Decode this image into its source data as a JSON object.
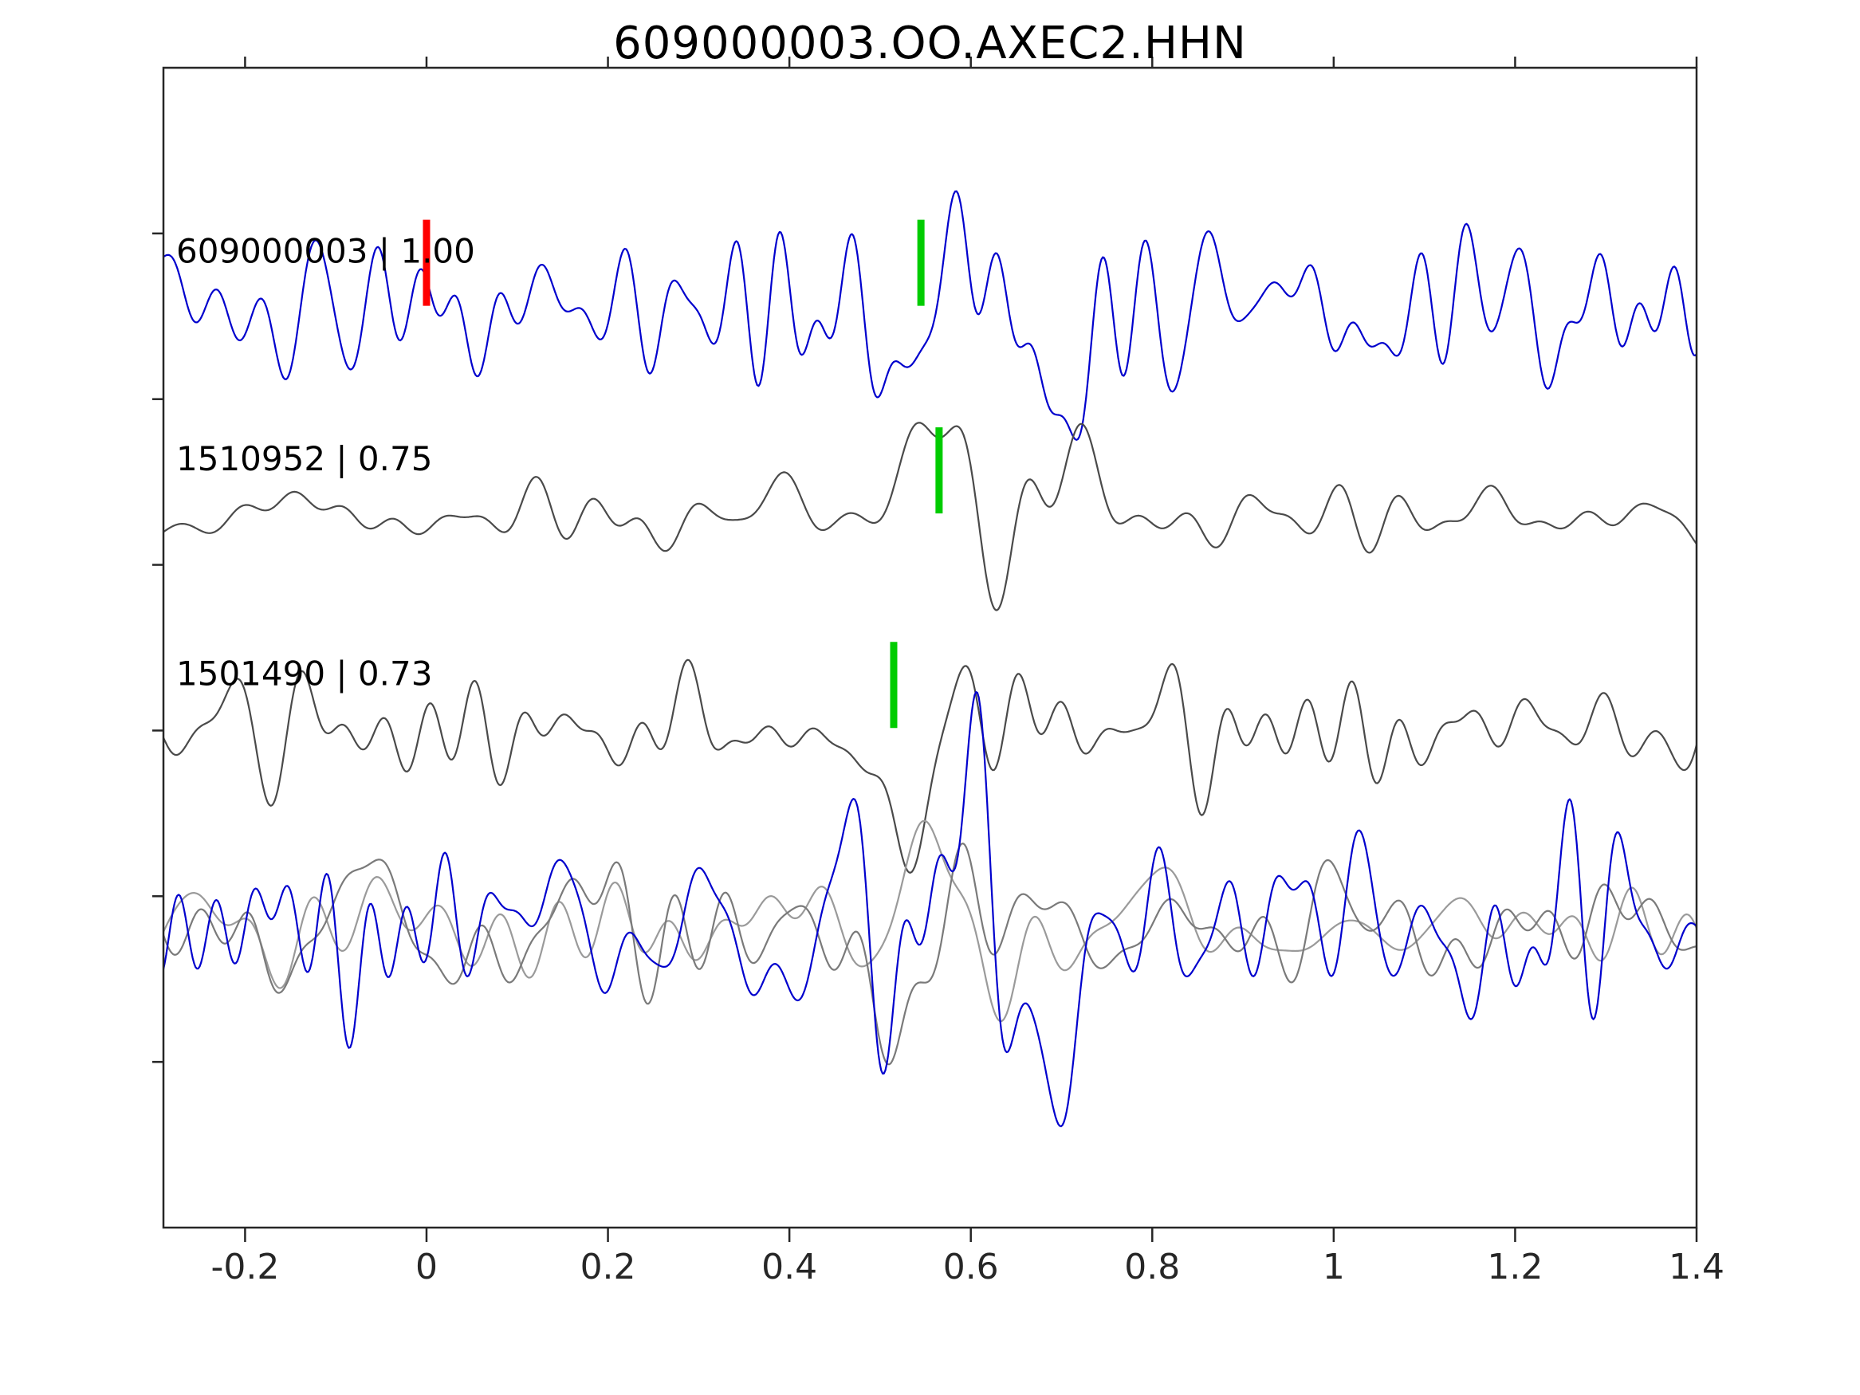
{
  "title": "609000003.OO.AXEC2.HHN",
  "colors": {
    "template_trace": "#0000cd",
    "detection_trace": "#4a4a4a",
    "overlay_gray_1": "#7a7a7a",
    "overlay_gray_2": "#9a9a9a",
    "origin_marker": "#ff0000",
    "pick_marker": "#00cc00",
    "axis": "#262626",
    "background": "#ffffff"
  },
  "chart_data": {
    "type": "line",
    "title": "609000003.OO.AXEC2.HHN",
    "xlabel": "",
    "ylabel": "",
    "xlim": [
      -0.29,
      1.4
    ],
    "x_ticks": [
      -0.2,
      0,
      0.2,
      0.4,
      0.6,
      0.8,
      1,
      1.2,
      1.4
    ],
    "x_tick_labels": [
      "-0.2",
      "0",
      "0.2",
      "0.4",
      "0.6",
      "0.8",
      "1",
      "1.2",
      "1.4"
    ],
    "grid": false,
    "legend": "none",
    "description": "Template-matching seismic waveform comparison: template event 609000003 (blue) against detections 1510952 (cc 0.75) and 1501490 (cc 0.73), with an overlay of all aligned traces in the bottom row. Red bar marks template origin time 0.0 s; green bars mark picks near 0.52-0.57 s.",
    "rows": [
      {
        "label": "609000003 | 1.00",
        "event_id": "609000003",
        "correlation": 1.0,
        "markers": [
          {
            "t": 0.0,
            "color": "#ff0000",
            "kind": "origin"
          },
          {
            "t": 0.545,
            "color": "#00cc00",
            "kind": "pick"
          }
        ],
        "traces": [
          {
            "color": "#0000cd",
            "seed": 11,
            "noise_amp": 0.4,
            "K": 60,
            "fmin": 2,
            "fmax": 26,
            "boost": {
              "amt": 0.45,
              "center": 0.6,
              "width": 0.18
            },
            "wavelets": [
              {
                "t0": 0.52,
                "A": -1.1,
                "sigma": 0.045,
                "f": 6.0,
                "ph": 0
              },
              {
                "t0": 0.63,
                "A": 0.95,
                "sigma": 0.07,
                "f": 5.0,
                "ph": 1.5
              },
              {
                "t0": 0.69,
                "A": -0.85,
                "sigma": 0.045,
                "f": 5.0,
                "ph": 0
              }
            ]
          }
        ]
      },
      {
        "label": "1510952 | 0.75",
        "event_id": "1510952",
        "correlation": 0.75,
        "markers": [
          {
            "t": 0.565,
            "color": "#00cc00",
            "kind": "pick"
          }
        ],
        "traces": [
          {
            "color": "#4a4a4a",
            "seed": 23,
            "noise_amp": 0.13,
            "K": 50,
            "fmin": 2,
            "fmax": 20,
            "boost": {
              "amt": 1.2,
              "center": 0.75,
              "width": 0.3
            },
            "wavelets": [
              {
                "t0": 0.565,
                "A": 1.55,
                "sigma": 0.032,
                "f": 2.0,
                "ph": 0
              },
              {
                "t0": 0.625,
                "A": -0.6,
                "sigma": 0.05,
                "f": 2.5,
                "ph": 0
              },
              {
                "t0": 0.72,
                "A": 0.45,
                "sigma": 0.06,
                "f": 3.0,
                "ph": 0
              }
            ]
          }
        ]
      },
      {
        "label": "1501490 | 0.73",
        "event_id": "1501490",
        "correlation": 0.73,
        "markers": [
          {
            "t": 0.515,
            "color": "#00cc00",
            "kind": "pick"
          }
        ],
        "traces": [
          {
            "color": "#4a4a4a",
            "seed": 37,
            "noise_amp": 0.26,
            "K": 55,
            "fmin": 2,
            "fmax": 22,
            "boost": {
              "amt": 0.25,
              "center": 0.65,
              "width": 0.25
            },
            "wavelets": [
              {
                "t0": 0.525,
                "A": -1.35,
                "sigma": 0.035,
                "f": 2.5,
                "ph": 0
              },
              {
                "t0": 0.58,
                "A": 0.65,
                "sigma": 0.04,
                "f": 3.0,
                "ph": 0
              }
            ]
          }
        ]
      },
      {
        "label": "",
        "event_id": "overlay",
        "correlation": null,
        "markers": [],
        "traces": [
          {
            "color": "#9a9a9a",
            "seed": 67,
            "noise_amp": 0.24,
            "K": 50,
            "fmin": 2,
            "fmax": 18,
            "boost": {
              "amt": 0.3,
              "center": 0.7,
              "width": 0.25
            },
            "wavelets": [
              {
                "t0": 0.56,
                "A": 0.95,
                "sigma": 0.035,
                "f": 2.0,
                "ph": 0
              },
              {
                "t0": 0.62,
                "A": -0.45,
                "sigma": 0.05,
                "f": 2.5,
                "ph": 0
              }
            ]
          },
          {
            "color": "#7a7a7a",
            "seed": 51,
            "noise_amp": 0.28,
            "K": 55,
            "fmin": 2,
            "fmax": 20,
            "boost": {
              "amt": 0.25,
              "center": 0.65,
              "width": 0.25
            },
            "wavelets": [
              {
                "t0": 0.525,
                "A": -1.3,
                "sigma": 0.035,
                "f": 2.5,
                "ph": 0
              },
              {
                "t0": 0.58,
                "A": 0.6,
                "sigma": 0.04,
                "f": 3.0,
                "ph": 0
              }
            ]
          },
          {
            "color": "#0000cd",
            "seed": 83,
            "noise_amp": 0.42,
            "K": 60,
            "fmin": 2,
            "fmax": 26,
            "boost": {
              "amt": 0.5,
              "center": 0.6,
              "width": 0.16
            },
            "wavelets": [
              {
                "t0": 0.52,
                "A": -1.15,
                "sigma": 0.04,
                "f": 7.0,
                "ph": 0
              },
              {
                "t0": 0.61,
                "A": 1.0,
                "sigma": 0.06,
                "f": 6.0,
                "ph": 1.3
              },
              {
                "t0": 0.69,
                "A": -0.9,
                "sigma": 0.045,
                "f": 5.5,
                "ph": 0
              }
            ]
          }
        ]
      }
    ]
  }
}
